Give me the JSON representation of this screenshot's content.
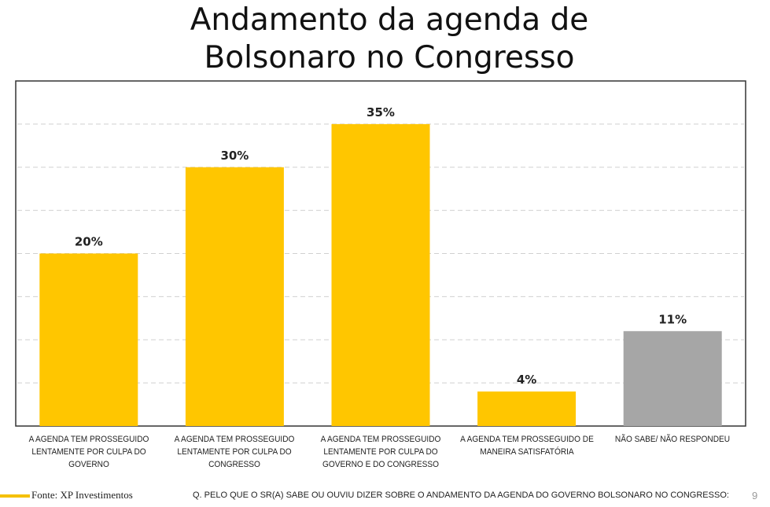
{
  "chart_data": {
    "type": "bar",
    "title": [
      "Andamento da agenda de",
      "Bolsonaro no Congresso"
    ],
    "categories": [
      [
        "A AGENDA TEM PROSSEGUIDO",
        "LENTAMENTE POR CULPA DO",
        "GOVERNO"
      ],
      [
        "A AGENDA TEM PROSSEGUIDO",
        "LENTAMENTE POR CULPA DO",
        "CONGRESSO"
      ],
      [
        "A AGENDA TEM PROSSEGUIDO",
        "LENTAMENTE POR CULPA DO",
        "GOVERNO E DO CONGRESSO"
      ],
      [
        "A AGENDA TEM PROSSEGUIDO DE",
        "MANEIRA SATISFATÓRIA"
      ],
      [
        "NÃO SABE/ NÃO RESPONDEU"
      ]
    ],
    "values": [
      20,
      30,
      35,
      4,
      11
    ],
    "data_labels": [
      "20%",
      "30%",
      "35%",
      "4%",
      "11%"
    ],
    "colors": [
      "#ffc600",
      "#ffc600",
      "#ffc600",
      "#ffc600",
      "#a6a6a6"
    ],
    "ylim": [
      0,
      40
    ],
    "grid": true,
    "grid_step": 5,
    "xlabel": "",
    "ylabel": ""
  },
  "footer": {
    "source": "Fonte: XP Investimentos",
    "question": "Q. PELO QUE O SR(A) SABE OU OUVIU DIZER SOBRE O ANDAMENTO DA AGENDA DO GOVERNO BOLSONARO NO CONGRESSO:",
    "page_number": "9",
    "accent_color": "#f5c000"
  }
}
